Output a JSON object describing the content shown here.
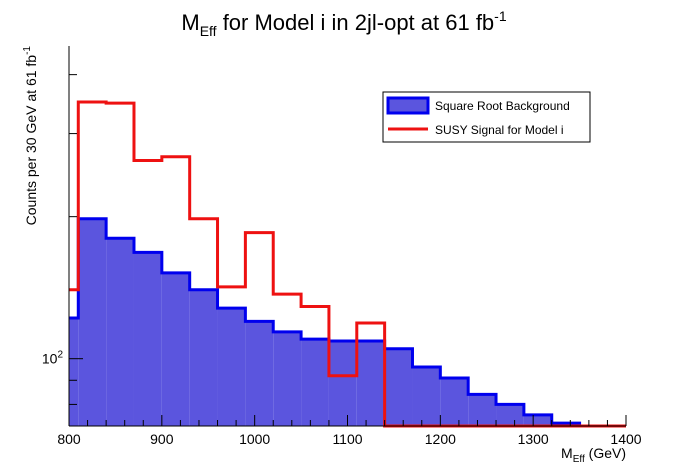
{
  "chart_data": {
    "type": "histogram",
    "title": {
      "main": "M",
      "main_sub": "Eff",
      "middle": " for Model i in 2jl-opt at 61 fb",
      "sup": "-1"
    },
    "xlabel": {
      "main": "M",
      "sub": "Eff",
      "rest": " (GeV)"
    },
    "ylabel": {
      "main": "Counts per 30 GeV at 61 fb",
      "sup": "-1"
    },
    "xlim": [
      800,
      1400
    ],
    "ylim": [
      72,
      460
    ],
    "yscale": "log",
    "x_ticks": [
      {
        "value": 800,
        "label": "800"
      },
      {
        "value": 900,
        "label": "900"
      },
      {
        "value": 1000,
        "label": "1000"
      },
      {
        "value": 1100,
        "label": "1100"
      },
      {
        "value": 1200,
        "label": "1200"
      },
      {
        "value": 1300,
        "label": "1300"
      },
      {
        "value": 1400,
        "label": "1400"
      }
    ],
    "y_tick_labels": [
      {
        "value": 100,
        "base": "10",
        "exp": "2"
      }
    ],
    "bin_edges": [
      780,
      810,
      840,
      870,
      900,
      930,
      960,
      990,
      1020,
      1050,
      1080,
      1110,
      1140,
      1170,
      1200,
      1230,
      1260,
      1290,
      1320,
      1350,
      1380,
      1410
    ],
    "series": [
      {
        "name": "Square Root Background",
        "style": "filled",
        "fill_color": "#5b55de",
        "line_color": "#0000ee",
        "values": [
          122,
          198,
          180,
          168,
          152,
          140,
          128,
          120,
          114,
          110,
          109,
          109,
          105,
          96,
          91,
          84,
          80,
          76,
          73,
          0,
          0
        ]
      },
      {
        "name": "SUSY Signal for Model i",
        "style": "line",
        "line_color": "#ee1111",
        "values": [
          140,
          350,
          348,
          263,
          268,
          198,
          142,
          185,
          137,
          129,
          92,
          119,
          0,
          0,
          0,
          0,
          0,
          0,
          0,
          0,
          0
        ]
      }
    ],
    "legend": {
      "placement": "top-right"
    }
  }
}
